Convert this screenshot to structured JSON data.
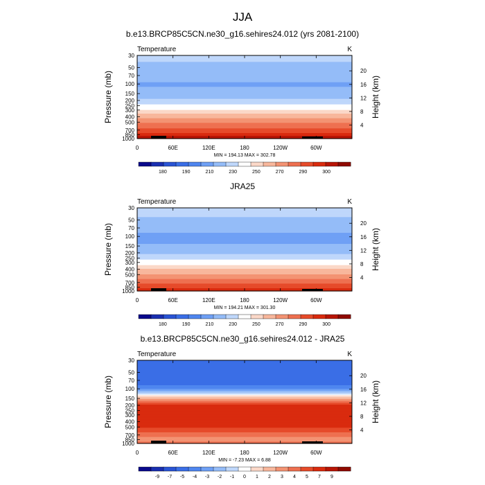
{
  "figure_title": "JJA",
  "colors": {
    "temp_levels": [
      "#0a0a8c",
      "#1a2fb0",
      "#2a54d4",
      "#3a6ee6",
      "#4f86ef",
      "#6fa0f5",
      "#94bcf8",
      "#bfd7fb",
      "#ffffff",
      "#fbd8c8",
      "#f8b79c",
      "#f39373",
      "#ee7050",
      "#e64b2a",
      "#d92b0e",
      "#b81505",
      "#8f0a00"
    ],
    "diff_levels": [
      "#0a0a8c",
      "#1a2fb0",
      "#2a54d4",
      "#3a6ee6",
      "#4f86ef",
      "#6fa0f5",
      "#94bcf8",
      "#bfd7fb",
      "#ffffff",
      "#fbd8c8",
      "#f8b79c",
      "#f39373",
      "#ee7050",
      "#e64b2a",
      "#d92b0e",
      "#b81505",
      "#8f0a00"
    ],
    "terrain": "#000000"
  },
  "chart_data": [
    {
      "type": "heatmap",
      "title": "b.e13.BRCP85C5CN.ne30_g16.sehires24.012 (yrs 2081-2100)",
      "left_label": "Temperature",
      "right_label": "K",
      "ylabel": "Pressure (mb)",
      "y2label": "Height (km)",
      "x_ticks": [
        "0",
        "60E",
        "120E",
        "180",
        "120W",
        "60W"
      ],
      "y_ticks": [
        30,
        50,
        70,
        100,
        150,
        200,
        250,
        300,
        400,
        500,
        700,
        850,
        1000
      ],
      "y2_ticks": [
        20,
        16,
        12,
        8,
        4
      ],
      "pressure_range": [
        1000,
        30
      ],
      "longitude_range": [
        0,
        360
      ],
      "stats": "MIN = 194.13  MAX = 302.78",
      "colorbar_labels": [
        "180",
        "190",
        "210",
        "230",
        "250",
        "270",
        "290",
        "300"
      ],
      "colorbar_levels": [
        175,
        180,
        185,
        190,
        200,
        210,
        220,
        230,
        240,
        250,
        260,
        270,
        280,
        290,
        295,
        300
      ],
      "profile": [
        {
          "p": 30,
          "v": 222
        },
        {
          "p": 50,
          "v": 218
        },
        {
          "p": 70,
          "v": 213
        },
        {
          "p": 100,
          "v": 209
        },
        {
          "p": 150,
          "v": 212
        },
        {
          "p": 200,
          "v": 222
        },
        {
          "p": 250,
          "v": 232
        },
        {
          "p": 300,
          "v": 241
        },
        {
          "p": 400,
          "v": 257
        },
        {
          "p": 500,
          "v": 268
        },
        {
          "p": 700,
          "v": 283
        },
        {
          "p": 850,
          "v": 293
        },
        {
          "p": 1000,
          "v": 300
        }
      ]
    },
    {
      "type": "heatmap",
      "title": "JRA25",
      "left_label": "Temperature",
      "right_label": "K",
      "ylabel": "Pressure (mb)",
      "y2label": "Height (km)",
      "x_ticks": [
        "0",
        "60E",
        "120E",
        "180",
        "120W",
        "60W"
      ],
      "y_ticks": [
        30,
        50,
        70,
        100,
        150,
        200,
        250,
        300,
        400,
        500,
        700,
        850,
        1000
      ],
      "y2_ticks": [
        20,
        16,
        12,
        8,
        4
      ],
      "pressure_range": [
        1000,
        30
      ],
      "longitude_range": [
        0,
        360
      ],
      "stats": "MIN = 194.21  MAX = 301.30",
      "colorbar_labels": [
        "180",
        "190",
        "210",
        "230",
        "250",
        "270",
        "290",
        "300"
      ],
      "colorbar_levels": [
        175,
        180,
        185,
        190,
        200,
        210,
        220,
        230,
        240,
        250,
        260,
        270,
        280,
        290,
        295,
        300
      ],
      "profile": [
        {
          "p": 30,
          "v": 223
        },
        {
          "p": 50,
          "v": 219
        },
        {
          "p": 70,
          "v": 214
        },
        {
          "p": 100,
          "v": 207
        },
        {
          "p": 150,
          "v": 211
        },
        {
          "p": 200,
          "v": 218
        },
        {
          "p": 250,
          "v": 227
        },
        {
          "p": 300,
          "v": 235
        },
        {
          "p": 400,
          "v": 250
        },
        {
          "p": 500,
          "v": 261
        },
        {
          "p": 700,
          "v": 277
        },
        {
          "p": 850,
          "v": 287
        },
        {
          "p": 1000,
          "v": 296
        }
      ]
    },
    {
      "type": "heatmap",
      "title": "b.e13.BRCP85C5CN.ne30_g16.sehires24.012 - JRA25",
      "left_label": "Temperature",
      "right_label": "K",
      "ylabel": "Pressure (mb)",
      "y2label": "Height (km)",
      "x_ticks": [
        "0",
        "60E",
        "120E",
        "180",
        "120W",
        "60W"
      ],
      "y_ticks": [
        30,
        50,
        70,
        100,
        150,
        200,
        250,
        300,
        400,
        500,
        700,
        850,
        1000
      ],
      "y2_ticks": [
        20,
        16,
        12,
        8,
        4
      ],
      "pressure_range": [
        1000,
        30
      ],
      "longitude_range": [
        0,
        360
      ],
      "stats": "MIN = -7.23  MAX =  6.88",
      "colorbar_labels": [
        "-9",
        "-7",
        "-5",
        "-4",
        "-3",
        "-2",
        "-1",
        "0",
        "1",
        "2",
        "3",
        "4",
        "5",
        "7",
        "9"
      ],
      "colorbar_levels": [
        -10,
        -9,
        -7,
        -5,
        -4,
        -3,
        -2,
        -1,
        0,
        1,
        2,
        3,
        4,
        5,
        7,
        9
      ],
      "profile": [
        {
          "p": 30,
          "v": -7
        },
        {
          "p": 50,
          "v": -7
        },
        {
          "p": 70,
          "v": -6.5
        },
        {
          "p": 100,
          "v": -4
        },
        {
          "p": 150,
          "v": 1.5
        },
        {
          "p": 200,
          "v": 5.5
        },
        {
          "p": 250,
          "v": 6.2
        },
        {
          "p": 300,
          "v": 6.5
        },
        {
          "p": 400,
          "v": 6
        },
        {
          "p": 500,
          "v": 5.2
        },
        {
          "p": 700,
          "v": 3.5
        },
        {
          "p": 850,
          "v": 2.5
        },
        {
          "p": 1000,
          "v": 3.5
        }
      ]
    }
  ]
}
